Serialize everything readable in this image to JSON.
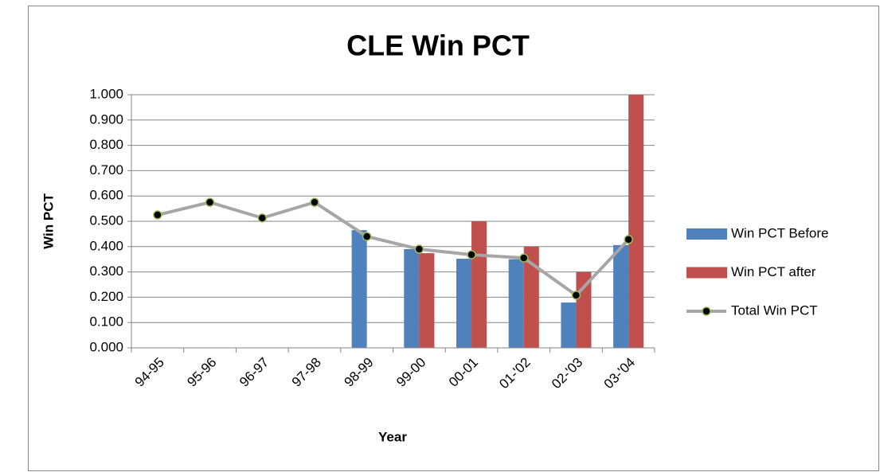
{
  "chart_data": {
    "type": "bar_line",
    "title": "CLE Win PCT",
    "x_label": "Year",
    "y_label": "Win PCT",
    "categories": [
      "94-95",
      "95-96",
      "96-97",
      "97-98",
      "98-99",
      "99-00",
      "00-01",
      "01-'02",
      "02-'03",
      "03-'04"
    ],
    "series": [
      {
        "name": "Win PCT Before",
        "type": "bar",
        "color": "#4f81bd",
        "values": [
          null,
          null,
          null,
          null,
          0.465,
          0.39,
          0.352,
          0.35,
          0.179,
          0.406
        ]
      },
      {
        "name": "Win PCT after",
        "type": "bar",
        "color": "#c0504d",
        "values": [
          null,
          null,
          null,
          null,
          null,
          0.374,
          0.5,
          0.4,
          0.3,
          1.0
        ]
      },
      {
        "name": "Total Win PCT",
        "type": "line",
        "color": "#a6a6a6",
        "marker_color": "#000000",
        "marker_edge": "#9bbb59",
        "values": [
          0.525,
          0.575,
          0.513,
          0.575,
          0.44,
          0.39,
          0.368,
          0.355,
          0.208,
          0.428
        ]
      }
    ],
    "ylim": [
      0,
      1
    ],
    "yticks": [
      {
        "value": 0,
        "label": "0.000"
      },
      {
        "value": 0.1,
        "label": "0.100"
      },
      {
        "value": 0.2,
        "label": "0.200"
      },
      {
        "value": 0.3,
        "label": "0.300"
      },
      {
        "value": 0.4,
        "label": "0.400"
      },
      {
        "value": 0.5,
        "label": "0.500"
      },
      {
        "value": 0.6,
        "label": "0.600"
      },
      {
        "value": 0.7,
        "label": "0.700"
      },
      {
        "value": 0.8,
        "label": "0.800"
      },
      {
        "value": 0.9,
        "label": "0.900"
      },
      {
        "value": 1,
        "label": "1.000"
      }
    ],
    "grid": true,
    "legend": "right"
  }
}
